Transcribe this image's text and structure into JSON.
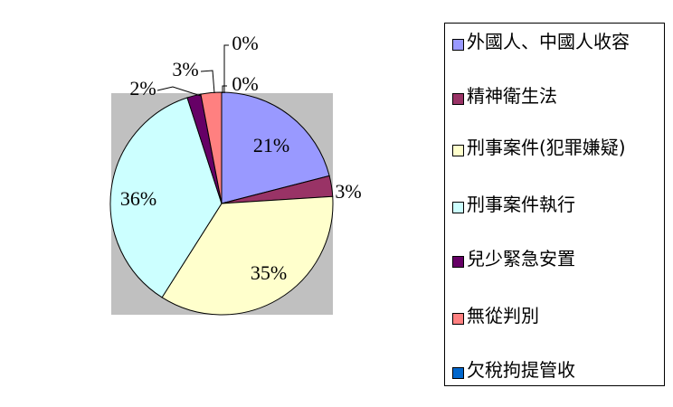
{
  "chart_data": {
    "type": "pie",
    "title": "",
    "slices": [
      {
        "name": "外國人、中國人收容",
        "label": "21%",
        "value": 21,
        "color": "#9999ff"
      },
      {
        "name": "精神衛生法",
        "label": "3%",
        "value": 3,
        "color": "#993366"
      },
      {
        "name": "刑事案件(犯罪嫌疑)",
        "label": "35%",
        "value": 35,
        "color": "#ffffcc"
      },
      {
        "name": "刑事案件執行",
        "label": "36%",
        "value": 36,
        "color": "#ccffff"
      },
      {
        "name": "兒少緊急安置",
        "label": "2%",
        "value": 2,
        "color": "#660066"
      },
      {
        "name": "無從判別",
        "label": "3%",
        "value": 3,
        "color": "#ff8080"
      },
      {
        "name": "欠稅拘提管收",
        "label": "0%",
        "value": 0,
        "color": "#0066cc"
      }
    ],
    "extra_label": "0%",
    "plot_background": "#c0c0c0",
    "legend_position": "right"
  }
}
